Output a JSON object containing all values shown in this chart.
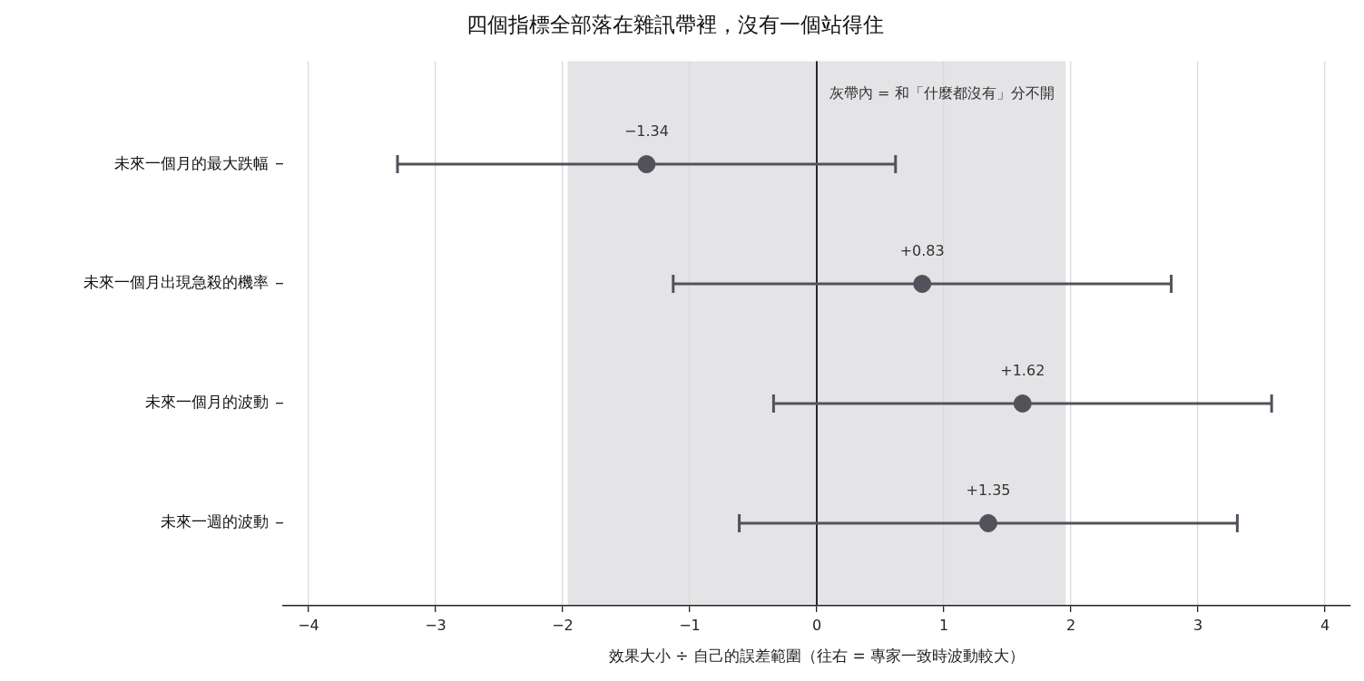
{
  "chart_data": {
    "type": "scatter",
    "orientation": "horizontal",
    "title": "四個指標全部落在雜訊帶裡，沒有一個站得住",
    "xlabel": "效果大小 ÷ 自己的誤差範圍（往右 = 專家一致時波動較大）",
    "categories": [
      "未來一個月的最大跌幅",
      "未來一個月出現急殺的機率",
      "未來一個月的波動",
      "未來一週的波動"
    ],
    "values": [
      -1.34,
      0.83,
      1.62,
      1.35
    ],
    "errors": [
      1.96,
      1.96,
      1.96,
      1.96
    ],
    "value_labels": [
      "−1.34",
      "+0.83",
      "+1.62",
      "+1.35"
    ],
    "color": "#52525b",
    "marker": "circle",
    "xlim": [
      -4.2,
      4.2
    ],
    "xticks": [
      {
        "value": -4,
        "label": "−4"
      },
      {
        "value": -3,
        "label": "−3"
      },
      {
        "value": -2,
        "label": "−2"
      },
      {
        "value": -1,
        "label": "−1"
      },
      0,
      1,
      2,
      3,
      4
    ],
    "bands": [
      {
        "axis": "x",
        "from": -1.96,
        "to": 1.96,
        "label": "灰帶內 = 和「什麼都沒有」分不開",
        "color": "#e4e4e7"
      }
    ],
    "ref_lines": [
      {
        "axis": "x",
        "value": 0,
        "color": "#27272a"
      }
    ],
    "grid": "x"
  }
}
